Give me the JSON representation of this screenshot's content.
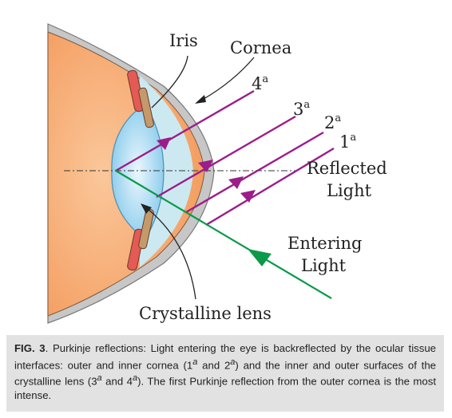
{
  "labels": {
    "iris": "Iris",
    "cornea": "Cornea",
    "reflected_line1": "Reflected",
    "reflected_line2": "Light",
    "entering_line1": "Entering",
    "entering_line2": "Light",
    "crystalline_lens": "Crystalline lens"
  },
  "reflections": [
    {
      "num": "4",
      "sup": "a"
    },
    {
      "num": "3",
      "sup": "a"
    },
    {
      "num": "2",
      "sup": "a"
    },
    {
      "num": "1",
      "sup": "a"
    }
  ],
  "colors": {
    "reflected_ray": "#9b1d8a",
    "entering_ray": "#0a9a4a",
    "eye_body": "#f6a06a",
    "lens_fill": "#bfe3f5",
    "cornea_gray": "#bdbdbd",
    "iris_tan": "#c49a6a",
    "iris_red": "#e45a55"
  },
  "caption": {
    "fig_label": "FIG. 3",
    "text_1": ". Purkinje reflections: Light entering the eye is backreflected by the ocular tissue interfaces: outer and inner cornea (1",
    "sup_1": "a",
    "text_2": " and 2",
    "sup_2": "a",
    "text_3": ") and the inner and outer surfaces of the crystalline lens (3",
    "sup_3": "a",
    "text_4": " and 4",
    "sup_4": "a",
    "text_5": "). The first Purkinje reflection from the outer cornea is the most intense."
  }
}
